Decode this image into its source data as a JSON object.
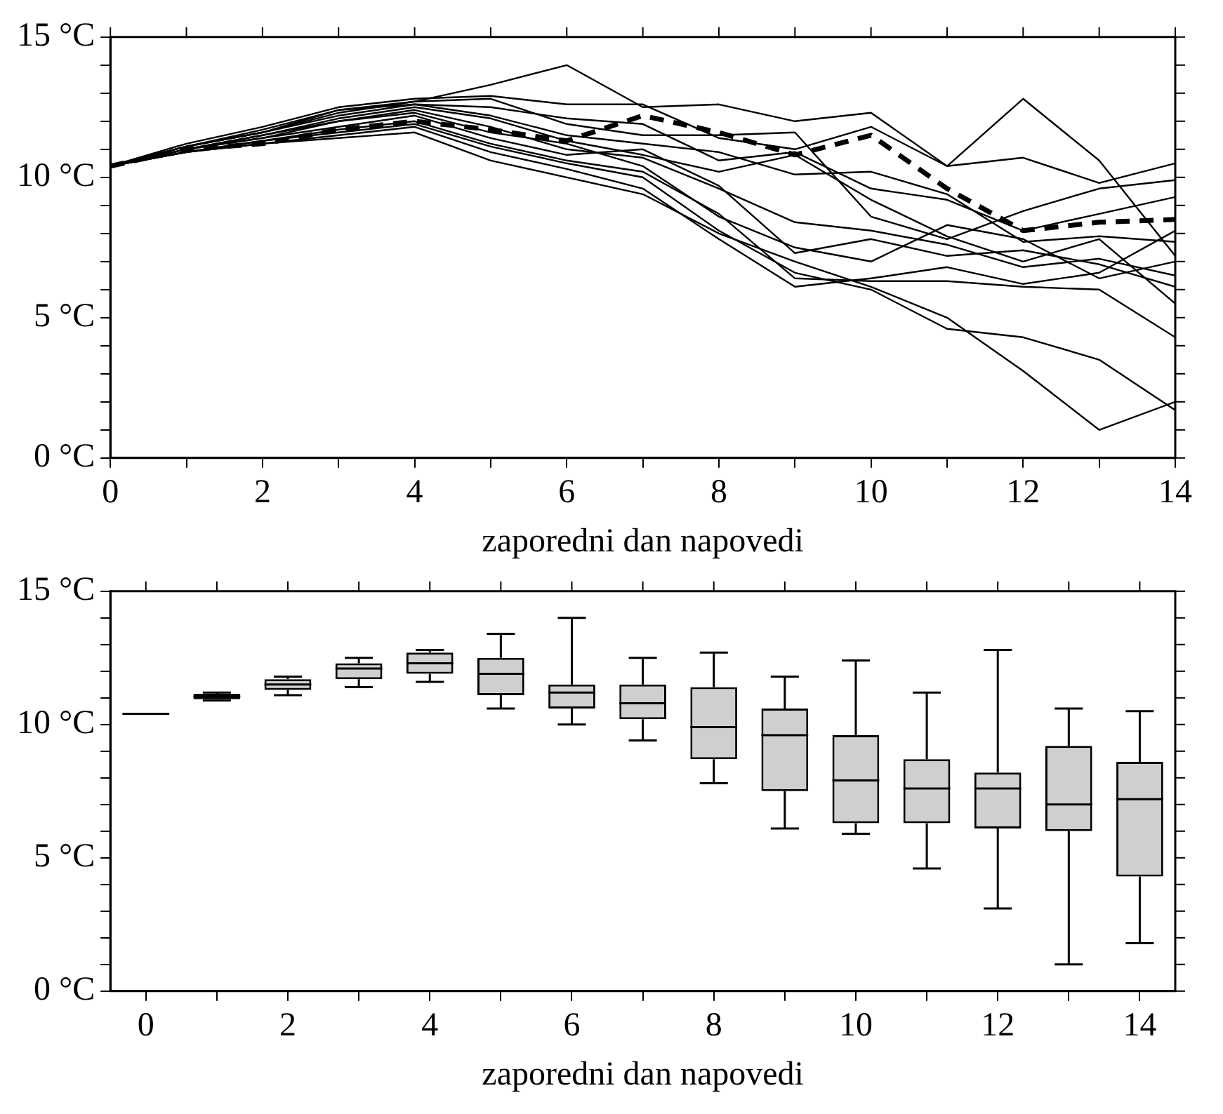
{
  "chart_data": [
    {
      "type": "line",
      "xlabel": "zaporedni dan napovedi",
      "x": [
        0,
        1,
        2,
        3,
        4,
        5,
        6,
        7,
        8,
        9,
        10,
        11,
        12,
        13,
        14
      ],
      "xlim": [
        0,
        14
      ],
      "xticks": [
        0,
        {
          "value": 1,
          "label": null
        },
        2,
        {
          "value": 3,
          "label": null
        },
        4,
        {
          "value": 5,
          "label": null
        },
        6,
        {
          "value": 7,
          "label": null
        },
        8,
        {
          "value": 9,
          "label": null
        },
        10,
        {
          "value": 11,
          "label": null
        },
        12,
        {
          "value": 13,
          "label": null
        },
        14
      ],
      "ylim": [
        0,
        15
      ],
      "yticks": [
        {
          "value": 0,
          "label": "0 °C"
        },
        {
          "value": 1,
          "label": null
        },
        {
          "value": 2,
          "label": null
        },
        {
          "value": 3,
          "label": null
        },
        {
          "value": 4,
          "label": null
        },
        {
          "value": 5,
          "label": "5 °C"
        },
        {
          "value": 6,
          "label": null
        },
        {
          "value": 7,
          "label": null
        },
        {
          "value": 8,
          "label": null
        },
        {
          "value": 9,
          "label": null
        },
        {
          "value": 10,
          "label": "10 °C"
        },
        {
          "value": 11,
          "label": null
        },
        {
          "value": 12,
          "label": null
        },
        {
          "value": 13,
          "label": null
        },
        {
          "value": 14,
          "label": null
        },
        {
          "value": 15,
          "label": "15 °C"
        }
      ],
      "series": [
        {
          "color": "#000000",
          "values": [
            10.4,
            11.1,
            11.6,
            12.3,
            12.7,
            13.3,
            14.0,
            12.5,
            12.6,
            12.0,
            12.3,
            10.4,
            12.8,
            10.6,
            7.2
          ]
        },
        {
          "color": "#000000",
          "values": [
            10.4,
            11.2,
            11.8,
            12.5,
            12.8,
            12.9,
            12.6,
            12.6,
            11.4,
            11.0,
            11.8,
            10.4,
            10.7,
            9.8,
            10.5
          ]
        },
        {
          "color": "#000000",
          "values": [
            10.4,
            11.1,
            11.7,
            12.4,
            12.6,
            12.5,
            12.1,
            11.9,
            10.6,
            10.9,
            9.6,
            9.2,
            8.1,
            8.7,
            9.3
          ]
        },
        {
          "color": "#000000",
          "values": [
            10.4,
            11.1,
            11.6,
            12.2,
            12.6,
            12.2,
            11.5,
            11.2,
            10.9,
            10.1,
            10.2,
            9.4,
            7.7,
            7.9,
            7.7
          ]
        },
        {
          "color": "#000000",
          "values": [
            10.4,
            11.0,
            11.5,
            12.1,
            12.5,
            12.1,
            11.3,
            10.8,
            10.2,
            10.8,
            9.2,
            7.9,
            7.0,
            7.8,
            5.5
          ]
        },
        {
          "color": "#000000",
          "values": [
            10.4,
            11.0,
            11.5,
            12.0,
            12.4,
            11.8,
            11.0,
            10.7,
            9.6,
            8.4,
            8.1,
            7.6,
            6.8,
            7.1,
            6.5
          ]
        },
        {
          "color": "#000000",
          "values": [
            10.4,
            11.0,
            11.4,
            12.0,
            12.3,
            11.6,
            11.2,
            10.4,
            8.6,
            7.5,
            7.0,
            8.3,
            7.8,
            6.4,
            7.0
          ]
        },
        {
          "color": "#000000",
          "values": [
            10.4,
            11.0,
            11.4,
            11.8,
            12.2,
            11.4,
            10.8,
            11.0,
            9.7,
            7.3,
            7.8,
            7.2,
            7.4,
            6.9,
            6.1
          ]
        },
        {
          "color": "#000000",
          "values": [
            10.4,
            10.9,
            11.3,
            11.7,
            12.0,
            11.2,
            10.6,
            10.2,
            8.7,
            6.4,
            6.3,
            6.3,
            6.1,
            6.0,
            4.3
          ]
        },
        {
          "color": "#000000",
          "values": [
            10.4,
            10.9,
            11.3,
            11.6,
            11.9,
            11.1,
            10.5,
            10.0,
            8.1,
            6.6,
            6.0,
            4.6,
            4.3,
            3.5,
            1.7
          ]
        },
        {
          "color": "#000000",
          "values": [
            10.4,
            10.9,
            11.2,
            11.5,
            11.8,
            10.9,
            10.3,
            9.6,
            7.8,
            6.1,
            6.4,
            6.8,
            6.2,
            6.6,
            8.1
          ]
        },
        {
          "color": "#000000",
          "values": [
            10.4,
            10.9,
            11.2,
            11.4,
            11.6,
            10.6,
            10.0,
            9.4,
            8.0,
            7.0,
            6.1,
            5.0,
            3.1,
            1.0,
            2.0
          ]
        },
        {
          "color": "#000000",
          "values": [
            10.4,
            11.1,
            11.6,
            12.4,
            12.7,
            12.8,
            11.9,
            11.5,
            11.5,
            11.6,
            8.6,
            7.8,
            8.8,
            9.6,
            9.9
          ]
        },
        {
          "color": "#000000",
          "line_style": "dashed",
          "values": [
            10.4,
            11.0,
            11.2,
            11.7,
            12.0,
            11.7,
            11.3,
            12.2,
            11.6,
            10.8,
            11.5,
            9.6,
            8.1,
            8.4,
            8.5
          ]
        }
      ]
    },
    {
      "type": "box",
      "xlabel": "zaporedni dan napovedi",
      "categories": [
        "0",
        null,
        "2",
        null,
        "4",
        null,
        "6",
        null,
        "8",
        null,
        "10",
        null,
        "12",
        null,
        "14"
      ],
      "ylim": [
        0,
        15
      ],
      "yticks": [
        {
          "value": 0,
          "label": "0 °C"
        },
        {
          "value": 1,
          "label": null
        },
        {
          "value": 2,
          "label": null
        },
        {
          "value": 3,
          "label": null
        },
        {
          "value": 4,
          "label": null
        },
        {
          "value": 5,
          "label": "5 °C"
        },
        {
          "value": 6,
          "label": null
        },
        {
          "value": 7,
          "label": null
        },
        {
          "value": 8,
          "label": null
        },
        {
          "value": 9,
          "label": null
        },
        {
          "value": 10,
          "label": "10 °C"
        },
        {
          "value": 11,
          "label": null
        },
        {
          "value": 12,
          "label": null
        },
        {
          "value": 13,
          "label": null
        },
        {
          "value": 14,
          "label": null
        },
        {
          "value": 15,
          "label": "15 °C"
        }
      ],
      "boxes": [
        {
          "low": 10.4,
          "q1": 10.4,
          "median": 10.4,
          "q3": 10.4,
          "high": 10.4
        },
        {
          "low": 10.9,
          "q1": 10.95,
          "median": 11.05,
          "q3": 11.15,
          "high": 11.2
        },
        {
          "low": 11.1,
          "q1": 11.3,
          "median": 11.5,
          "q3": 11.7,
          "high": 11.8
        },
        {
          "low": 11.4,
          "q1": 11.7,
          "median": 12.1,
          "q3": 12.3,
          "high": 12.5
        },
        {
          "low": 11.6,
          "q1": 11.9,
          "median": 12.3,
          "q3": 12.7,
          "high": 12.8
        },
        {
          "low": 10.6,
          "q1": 11.1,
          "median": 11.9,
          "q3": 12.5,
          "high": 13.4
        },
        {
          "low": 10.0,
          "q1": 10.6,
          "median": 11.2,
          "q3": 11.5,
          "high": 14.0
        },
        {
          "low": 9.4,
          "q1": 10.2,
          "median": 10.8,
          "q3": 11.5,
          "high": 12.5
        },
        {
          "low": 7.8,
          "q1": 8.7,
          "median": 9.9,
          "q3": 11.4,
          "high": 12.7
        },
        {
          "low": 6.1,
          "q1": 7.5,
          "median": 9.6,
          "q3": 10.6,
          "high": 11.8
        },
        {
          "low": 5.9,
          "q1": 6.3,
          "median": 7.9,
          "q3": 9.6,
          "high": 12.4
        },
        {
          "low": 4.6,
          "q1": 6.3,
          "median": 7.6,
          "q3": 8.7,
          "high": 11.2
        },
        {
          "low": 3.1,
          "q1": 6.1,
          "median": 7.6,
          "q3": 8.2,
          "high": 12.8
        },
        {
          "low": 1.0,
          "q1": 6.0,
          "median": 7.0,
          "q3": 9.2,
          "high": 10.6
        },
        {
          "low": 1.8,
          "q1": 4.3,
          "median": 7.2,
          "q3": 8.6,
          "high": 10.5
        }
      ]
    }
  ]
}
